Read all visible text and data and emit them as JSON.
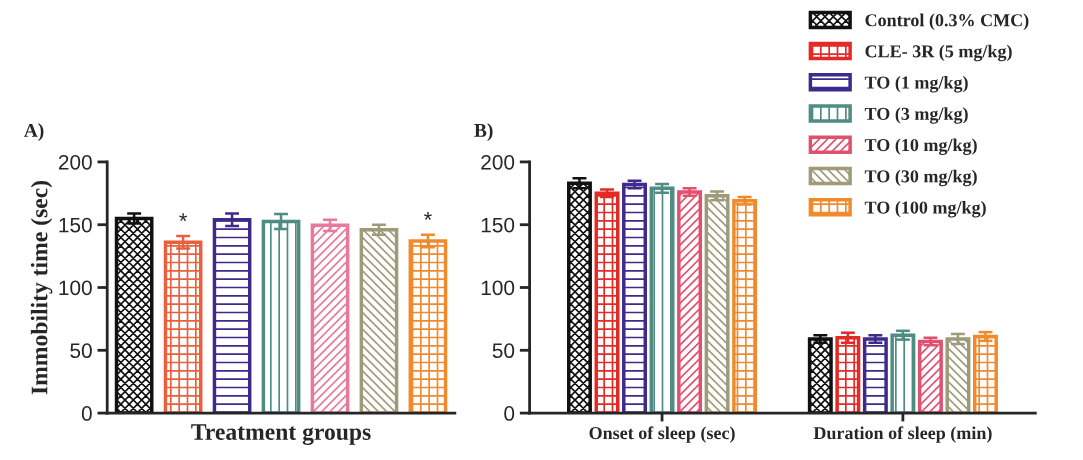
{
  "chart_data": [
    {
      "type": "bar",
      "title": "A)",
      "ylabel": "Immobility time (sec)",
      "xlabel": "Treatment groups",
      "categories": [
        null,
        null,
        null,
        null,
        null,
        null,
        null
      ],
      "values": [
        155,
        136,
        154,
        152.5,
        149.5,
        146,
        137
      ],
      "errors": [
        4,
        5,
        5,
        6,
        4.5,
        4,
        5
      ],
      "colors": [
        "#111111",
        "#e8603c",
        "#3d2a8a",
        "#4e8c84",
        "#e7799a",
        "#9e9a7a",
        "#f08a2c"
      ],
      "value_labels": [
        null,
        "*",
        null,
        null,
        null,
        null,
        "*"
      ],
      "ylim": [
        0,
        200
      ],
      "yticks": [
        0,
        50,
        100,
        150,
        200
      ],
      "grid": false
    },
    {
      "type": "bar",
      "title": "B)",
      "categories": [
        "Onset of sleep (sec)",
        "Duration of sleep (min)"
      ],
      "series": [
        {
          "name": "Control (0.3% CMC)",
          "color": "#111111",
          "values": [
            183,
            59
          ],
          "errors": [
            4,
            3
          ]
        },
        {
          "name": "CLE- 3R (5 mg/kg)",
          "color": "#e42a25",
          "values": [
            175,
            60
          ],
          "errors": [
            3,
            4
          ]
        },
        {
          "name": "TO (1 mg/kg)",
          "color": "#3d2a8a",
          "values": [
            182,
            59
          ],
          "errors": [
            3,
            3
          ]
        },
        {
          "name": "TO (3 mg/kg)",
          "color": "#4e8c84",
          "values": [
            179,
            62
          ],
          "errors": [
            3.5,
            3.5
          ]
        },
        {
          "name": "TO (10 mg/kg)",
          "color": "#e0506f",
          "values": [
            176,
            57
          ],
          "errors": [
            3,
            3
          ]
        },
        {
          "name": "TO (30 mg/kg)",
          "color": "#9e9a7a",
          "values": [
            173,
            59
          ],
          "errors": [
            3.5,
            4
          ]
        },
        {
          "name": "TO (100 mg/kg)",
          "color": "#f08a2c",
          "values": [
            169,
            61
          ],
          "errors": [
            3,
            3.5
          ]
        }
      ],
      "ylim": [
        0,
        200
      ],
      "yticks": [
        0,
        50,
        100,
        150,
        200
      ],
      "grid": false,
      "legend": "top right"
    }
  ]
}
